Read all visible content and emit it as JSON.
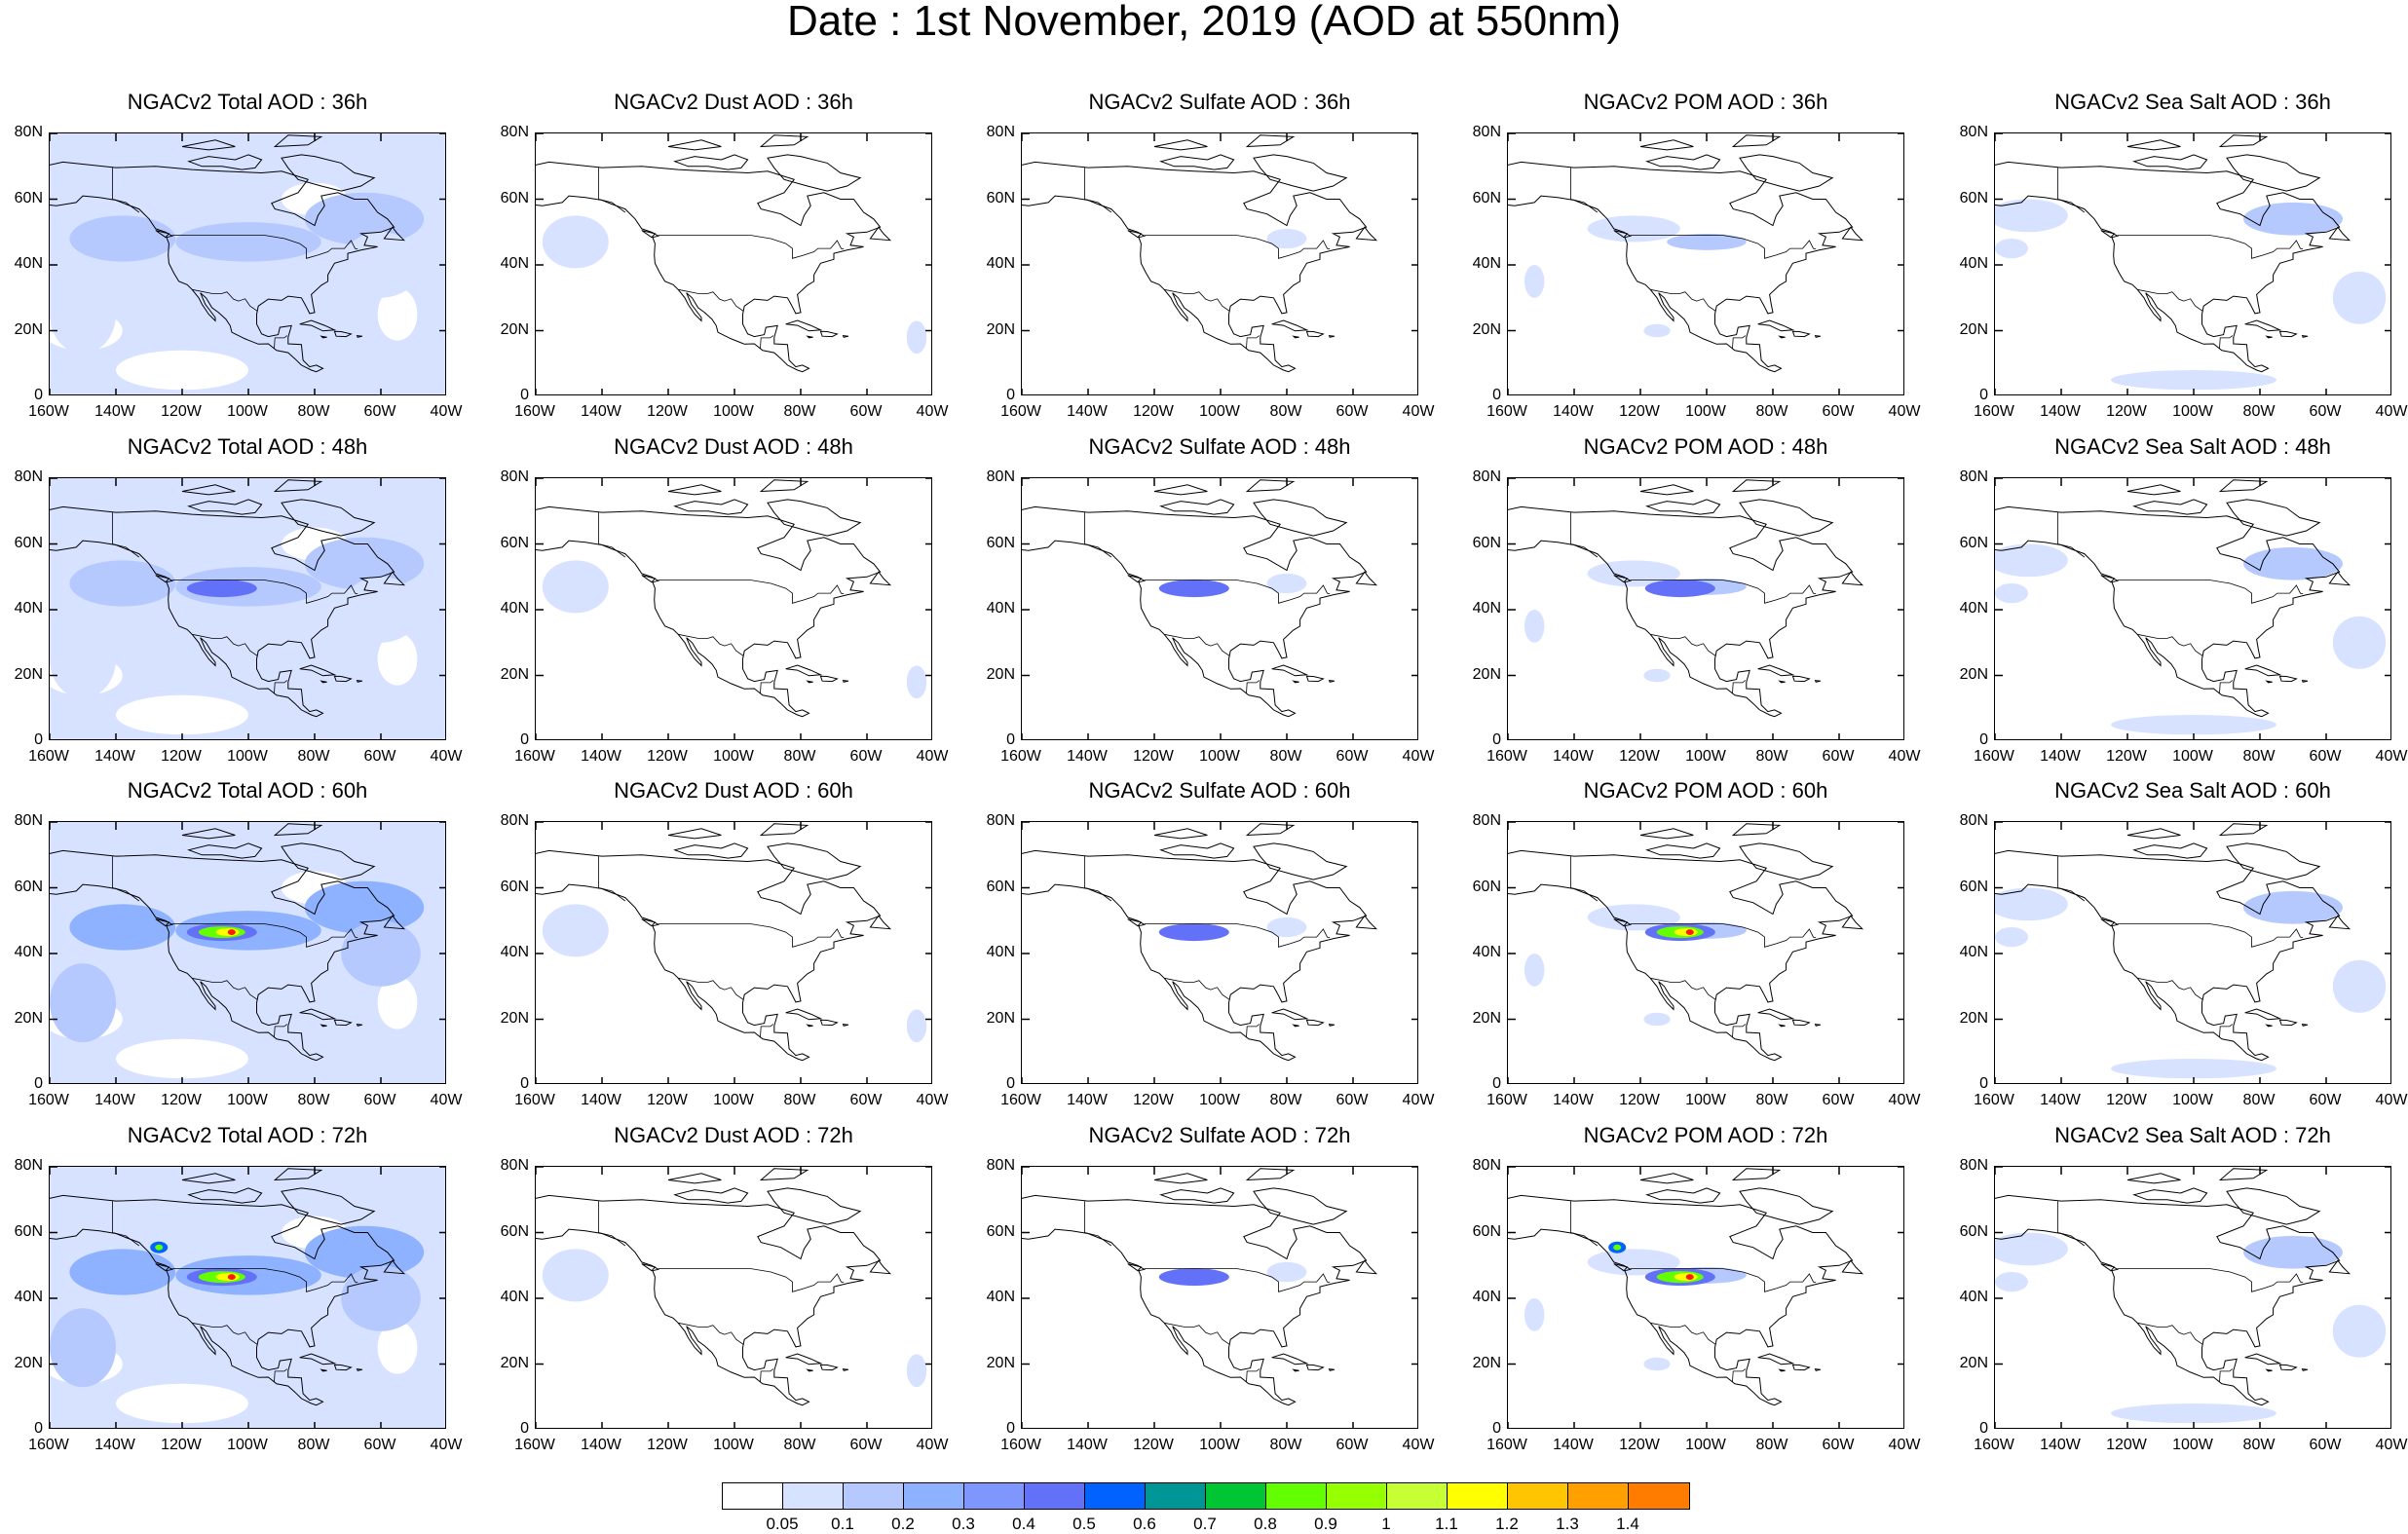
{
  "title": "Date : 1st November, 2019 (AOD at 550nm)",
  "panels": [
    {
      "title": "NGACv2 Total AOD : 36h",
      "field": "total",
      "hour": 36
    },
    {
      "title": "NGACv2 Dust AOD : 36h",
      "field": "dust",
      "hour": 36
    },
    {
      "title": "NGACv2 Sulfate AOD : 36h",
      "field": "sulfate",
      "hour": 36
    },
    {
      "title": "NGACv2 POM AOD : 36h",
      "field": "pom",
      "hour": 36
    },
    {
      "title": "NGACv2 Sea Salt AOD : 36h",
      "field": "seasalt",
      "hour": 36
    },
    {
      "title": "NGACv2 Total AOD : 48h",
      "field": "total",
      "hour": 48
    },
    {
      "title": "NGACv2 Dust AOD : 48h",
      "field": "dust",
      "hour": 48
    },
    {
      "title": "NGACv2 Sulfate AOD : 48h",
      "field": "sulfate",
      "hour": 48
    },
    {
      "title": "NGACv2 POM AOD : 48h",
      "field": "pom",
      "hour": 48
    },
    {
      "title": "NGACv2 Sea Salt AOD : 48h",
      "field": "seasalt",
      "hour": 48
    },
    {
      "title": "NGACv2 Total AOD : 60h",
      "field": "total",
      "hour": 60
    },
    {
      "title": "NGACv2 Dust AOD : 60h",
      "field": "dust",
      "hour": 60
    },
    {
      "title": "NGACv2 Sulfate AOD : 60h",
      "field": "sulfate",
      "hour": 60
    },
    {
      "title": "NGACv2 POM AOD : 60h",
      "field": "pom",
      "hour": 60
    },
    {
      "title": "NGACv2 Sea Salt AOD : 60h",
      "field": "seasalt",
      "hour": 60
    },
    {
      "title": "NGACv2 Total AOD : 72h",
      "field": "total",
      "hour": 72
    },
    {
      "title": "NGACv2 Dust AOD : 72h",
      "field": "dust",
      "hour": 72
    },
    {
      "title": "NGACv2 Sulfate AOD : 72h",
      "field": "sulfate",
      "hour": 72
    },
    {
      "title": "NGACv2 POM AOD : 72h",
      "field": "pom",
      "hour": 72
    },
    {
      "title": "NGACv2 Sea Salt  AOD : 72h",
      "field": "seasalt",
      "hour": 72
    }
  ],
  "axes": {
    "lat_labels": [
      "80N",
      "60N",
      "40N",
      "20N",
      "0"
    ],
    "lon_labels": [
      "160W",
      "140W",
      "120W",
      "100W",
      "80W",
      "60W",
      "40W"
    ],
    "lat_range": [
      0,
      80
    ],
    "lon_range": [
      -160,
      -40
    ]
  },
  "colorbar": {
    "labels": [
      "0.05",
      "0.1",
      "0.2",
      "0.3",
      "0.4",
      "0.5",
      "0.6",
      "0.7",
      "0.8",
      "0.9",
      "1",
      "1.1",
      "1.2",
      "1.3",
      "1.4"
    ],
    "colors": [
      "#ffffff",
      "#d6e2ff",
      "#b5c9ff",
      "#8eb2ff",
      "#7f96ff",
      "#6370f8",
      "#0063ff",
      "#009696",
      "#00c633",
      "#63ff00",
      "#96ff00",
      "#c6ff33",
      "#ffff00",
      "#ffc600",
      "#ffa000",
      "#ff7c00",
      "#ff1900"
    ]
  },
  "colors": {
    "light_aod": "#d6e2ff",
    "mid_aod": "#b5c9ff",
    "high_aod": "#8eb2ff"
  }
}
